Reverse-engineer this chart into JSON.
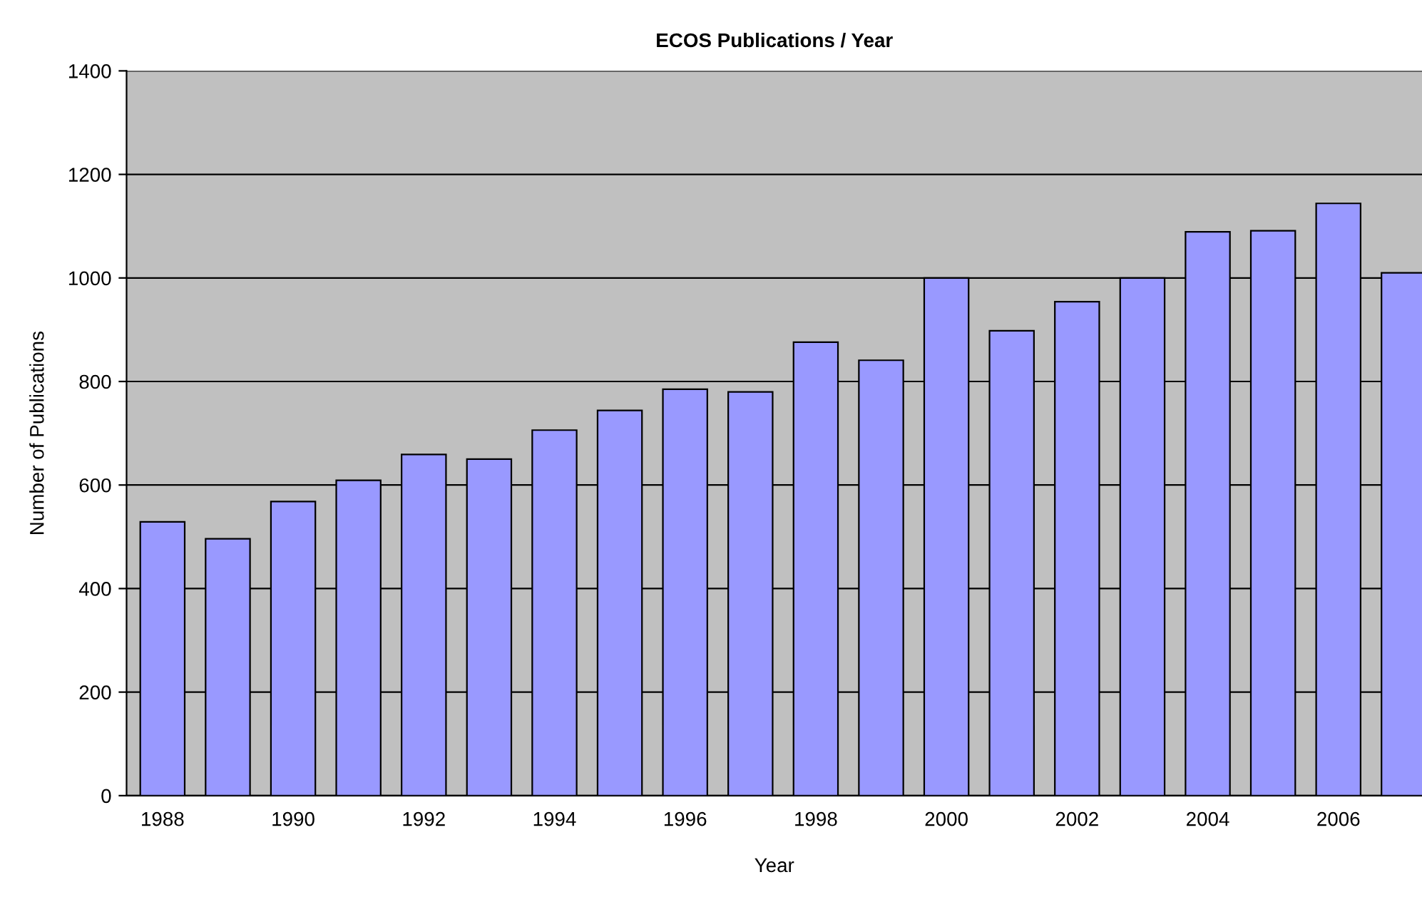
{
  "chart_data": {
    "type": "bar",
    "title": "ECOS Publications / Year",
    "xlabel": "Year",
    "ylabel": "Number of Publications",
    "categories": [
      "1988",
      null,
      "1990",
      null,
      "1992",
      null,
      "1994",
      null,
      "1996",
      null,
      "1998",
      null,
      "2000",
      null,
      "2002",
      null,
      "2004",
      null,
      "2006",
      null
    ],
    "values": [
      529,
      496,
      568,
      609,
      659,
      650,
      706,
      744,
      785,
      780,
      876,
      841,
      1000,
      898,
      954,
      1000,
      1089,
      1091,
      1144,
      1010
    ],
    "color": "#9999ff",
    "ylim": [
      0,
      1400
    ],
    "yticks": [
      0,
      200,
      400,
      600,
      800,
      1000,
      1200,
      1400
    ],
    "grid": "y"
  }
}
